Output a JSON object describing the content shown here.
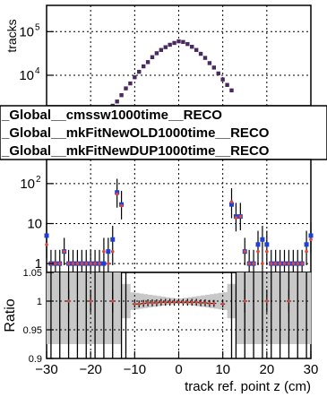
{
  "chart_data": {
    "type": "scatter",
    "y_axis_top": "tracks",
    "y_axis_ratio": "Ratio",
    "x_axis_label": "track ref. point z (cm)",
    "x_ticks": [
      "−30",
      "−20",
      "−10",
      "0",
      "10",
      "20",
      "30"
    ],
    "y_ticks_top": [
      "10",
      "10"
    ],
    "y_ticks_top_exp": [
      "5",
      "4"
    ],
    "y_ticks_mid": [
      "1",
      "10",
      "10"
    ],
    "y_ticks_mid_exp": [
      "",
      "",
      "2"
    ],
    "y_ticks_ratio": [
      "1.05",
      "1",
      "0.95",
      "0.9"
    ],
    "legend": [
      "_Global__cmssw1000time__RECO",
      "_Global__mkFitNewOLD1000time__RECO",
      "_Global__mkFitNewDUP1000time__RECO"
    ],
    "log_y": true,
    "grid": true,
    "x_range": [
      -30,
      30
    ],
    "ratio_range": [
      0.9,
      1.05
    ],
    "colors": {
      "series_a": "#d9473a",
      "series_b": "#1f3fd6",
      "series_c": "#4a2a5e",
      "band": "#c8c8c8"
    },
    "series_top": {
      "name": "",
      "x": [
        -15,
        -14,
        -13,
        -12,
        -11,
        -10,
        -9,
        -8,
        -7,
        -6,
        -5,
        -4,
        -3,
        -2,
        -1,
        0,
        1,
        2,
        3,
        4,
        5,
        6,
        7,
        8,
        9,
        10,
        11,
        12
      ],
      "y": [
        2000,
        2500,
        3500,
        5000,
        6500,
        9000,
        12000,
        16000,
        20000,
        26000,
        32000,
        38000,
        44000,
        50000,
        55000,
        60000,
        58000,
        52000,
        45000,
        38000,
        31000,
        25000,
        19000,
        15000,
        11000,
        8000,
        6000,
        4500
      ]
    },
    "series_mid": {
      "x": [
        -30,
        -29,
        -28,
        -27,
        -26,
        -25,
        -24,
        -23,
        -22,
        -21,
        -20,
        -19,
        -18,
        -17,
        -16,
        -15,
        -14,
        -13,
        12,
        13,
        14,
        15,
        16,
        17,
        18,
        19,
        20,
        21,
        22,
        23,
        24,
        25,
        26,
        27,
        28,
        29,
        30
      ],
      "y_blue": [
        5,
        1,
        1,
        1,
        2,
        1,
        1,
        1,
        1,
        1,
        1,
        1,
        1,
        1,
        2,
        4,
        60,
        30,
        30,
        15,
        15,
        2,
        1,
        1,
        3,
        4,
        3,
        1,
        1,
        1,
        1,
        1,
        1,
        1,
        1,
        3,
        5
      ],
      "y_red": [
        3,
        1,
        1,
        1,
        2,
        1,
        1,
        1,
        1,
        1,
        1,
        1,
        1,
        2,
        1,
        2,
        55,
        28,
        35,
        14,
        15,
        2,
        1,
        1,
        2,
        1,
        2,
        1,
        1,
        1,
        1,
        1,
        1,
        1,
        1,
        2,
        4
      ]
    },
    "ratio": {
      "x": [
        -25,
        -20,
        -15,
        -10,
        -9,
        -8,
        -7,
        -6,
        -5,
        -4,
        -3,
        -2,
        -1,
        0,
        1,
        2,
        3,
        4,
        5,
        6,
        7,
        8,
        10,
        15,
        20,
        25
      ],
      "y": [
        1,
        1,
        1,
        0.995,
        0.995,
        0.996,
        0.997,
        0.997,
        0.997,
        0.998,
        0.998,
        0.998,
        0.998,
        0.998,
        0.998,
        0.998,
        0.998,
        0.998,
        0.997,
        0.997,
        0.996,
        0.996,
        0.995,
        1,
        1,
        1
      ]
    }
  }
}
